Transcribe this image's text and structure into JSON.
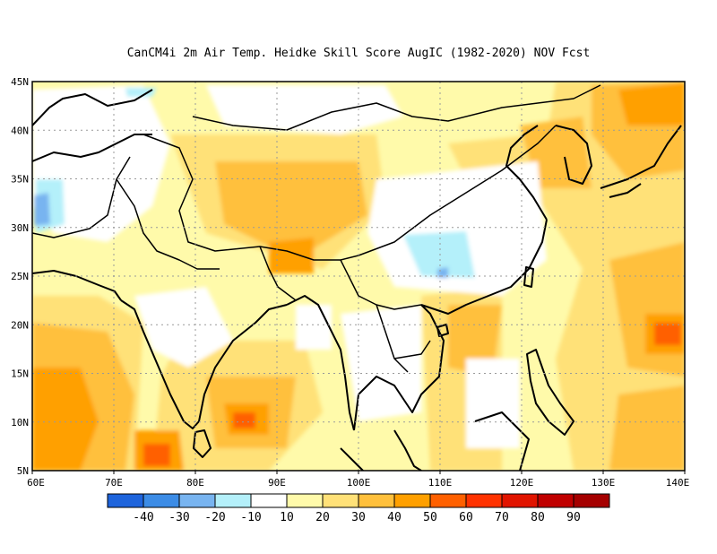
{
  "title": "CanCM4i  2m Air Temp. Heidke Skill Score AugIC (1982-2020) NOV Fcst",
  "map": {
    "lon_range": [
      60,
      140
    ],
    "lat_range": [
      5,
      45
    ],
    "lon_ticks": [
      "60E",
      "70E",
      "80E",
      "90E",
      "100E",
      "110E",
      "120E",
      "130E",
      "140E"
    ],
    "lat_ticks": [
      "5N",
      "10N",
      "15N",
      "20N",
      "25N",
      "30N",
      "35N",
      "40N",
      "45N"
    ],
    "grid": "dotted"
  },
  "colorbar": {
    "labels": [
      "-40",
      "-30",
      "-20",
      "-10",
      "10",
      "20",
      "30",
      "40",
      "50",
      "60",
      "70",
      "80",
      "90"
    ],
    "colors": [
      "#1e64dc",
      "#3c8ce6",
      "#78b4f0",
      "#b4f0fa",
      "#ffffff",
      "#fffaaa",
      "#ffe178",
      "#ffc03c",
      "#ffa000",
      "#ff6000",
      "#ff3200",
      "#e11400",
      "#c00000",
      "#a50000"
    ]
  }
}
